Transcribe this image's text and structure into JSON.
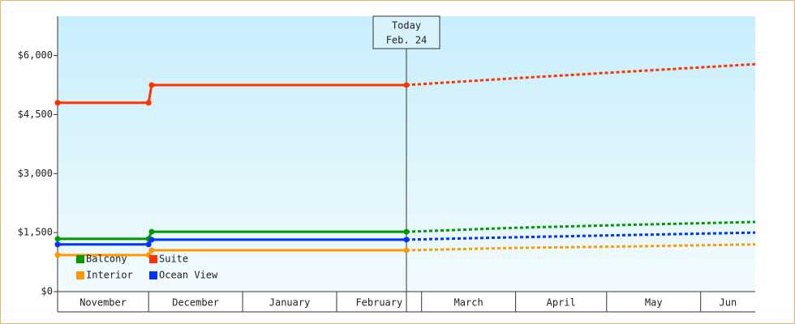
{
  "chart_data": {
    "type": "line",
    "x": [
      0,
      30,
      31,
      115,
      150,
      190,
      230
    ],
    "xlim": [
      0,
      230
    ],
    "xticks": [
      0,
      30,
      61,
      92,
      120,
      151,
      181,
      212
    ],
    "x_categories": [
      "November",
      "December",
      "January",
      "February",
      "March",
      "April",
      "May",
      "Jun"
    ],
    "ylim": [
      0,
      7000
    ],
    "yticks": [
      {
        "value": 0,
        "label": "$0"
      },
      {
        "value": 1500,
        "label": "$1,500"
      },
      {
        "value": 3000,
        "label": "$3,000"
      },
      {
        "value": 4500,
        "label": "$4,500"
      },
      {
        "value": 6000,
        "label": "$6,000"
      }
    ],
    "annotation": {
      "x": 115,
      "lines": [
        "Today",
        "Feb. 24"
      ]
    },
    "series": [
      {
        "name": "Balcony",
        "color": "#009900",
        "values": [
          1340,
          1340,
          1520,
          1520,
          null,
          null,
          null
        ],
        "forecast": [
          null,
          null,
          null,
          1520,
          1620,
          1700,
          1770
        ]
      },
      {
        "name": "Suite",
        "color": "#ff3300",
        "values": [
          4800,
          4800,
          5250,
          5250,
          null,
          null,
          null
        ],
        "forecast": [
          null,
          null,
          null,
          5250,
          5420,
          5600,
          5780
        ]
      },
      {
        "name": "Interior",
        "color": "#ff9900",
        "values": [
          930,
          930,
          1050,
          1050,
          null,
          null,
          null
        ],
        "forecast": [
          null,
          null,
          null,
          1050,
          1110,
          1150,
          1200
        ]
      },
      {
        "name": "Ocean View",
        "color": "#0033ff",
        "values": [
          1200,
          1200,
          1320,
          1320,
          null,
          null,
          null
        ],
        "forecast": [
          null,
          null,
          null,
          1320,
          1380,
          1440,
          1500
        ]
      }
    ]
  }
}
